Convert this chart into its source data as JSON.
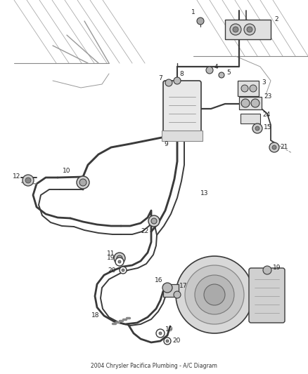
{
  "title": "2004 Chrysler Pacifica Plumbing - A/C Diagram",
  "bg_color": "#ffffff",
  "line_color": "#3a3a3a",
  "label_color": "#222222",
  "label_fontsize": 6.5,
  "fig_w": 4.38,
  "fig_h": 5.33,
  "dpi": 100,
  "pipe_lw": 1.6,
  "thin_lw": 0.8
}
